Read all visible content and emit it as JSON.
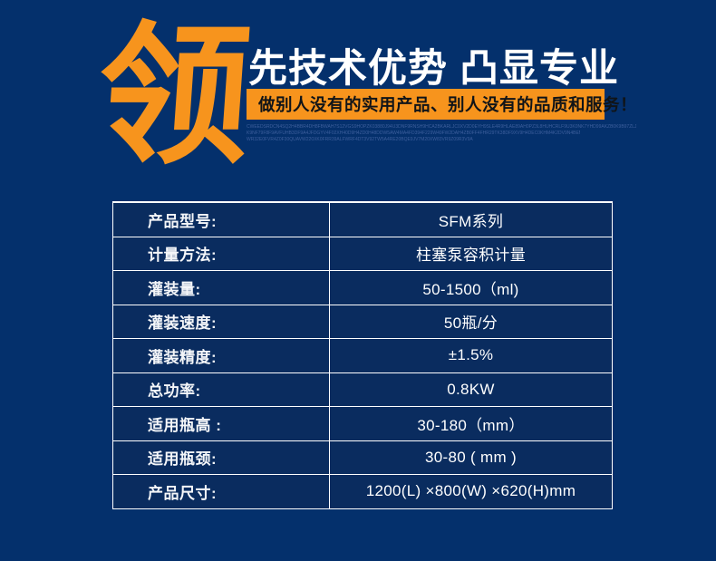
{
  "page": {
    "background_color": "#04306C",
    "accent_orange": "#F7941D",
    "table_cell_color": "#0A2C5F",
    "border_color": "#FFFFFF"
  },
  "hero": {
    "big_char": "领",
    "title": "先技术优势 凸显专业",
    "banner_text": "做别人没有的实用产品、别人没有的品质和服务！",
    "microtext_line1": "CWEEDSRDCN4SQ2H4BBR4DH8FBWAH7S12VGS9HOPZK03880J94U3DNF9RNSH9HCA2BKARLJC0XV2D0EYH9SLE4R9HLAE89AH0PZ3L8HUHCRLF9U3K0NK7YHD99AKZB0K9B97ZLJK0YV8Z5NK0L3VK939AY0K9HSEC0",
    "microtext_line2": "K9NF79F8F9AVFUHB3DF9A4JFDGYV4F02XH40D9H4ZD0H48DDW5AW4MA4FD394F229W49FW2DAH4ZB0FF4FHR29TK38DF9XV9H4DEC0KHM4K2DV9N4BEM0HS94HRE4D0K9",
    "microtext_line3": "WR32E0FVR4Z0F30QUAVW220XK0FRR39ALFWRF4DT3V92TW5A4RE20BQE9JV7M20XW83VR9Z09R3V9AH7T32Q5AH03A4WRNS"
  },
  "spec_table": {
    "rows": [
      {
        "label": "产品型号:",
        "value": "SFM系列"
      },
      {
        "label": "计量方法:",
        "value": "柱塞泵容积计量"
      },
      {
        "label": "灌装量:",
        "value": "50-1500（ml)"
      },
      {
        "label": "灌装速度:",
        "value": "50瓶/分"
      },
      {
        "label": "灌装精度:",
        "value": "±1.5%"
      },
      {
        "label": "总功率:",
        "value": "0.8KW"
      },
      {
        "label": "适用瓶高 :",
        "value": "30-180（mm）"
      },
      {
        "label": "适用瓶颈:",
        "value": "30-80 ( mm )"
      },
      {
        "label": "产品尺寸:",
        "value": "1200(L) ×800(W) ×620(H)mm"
      }
    ]
  }
}
